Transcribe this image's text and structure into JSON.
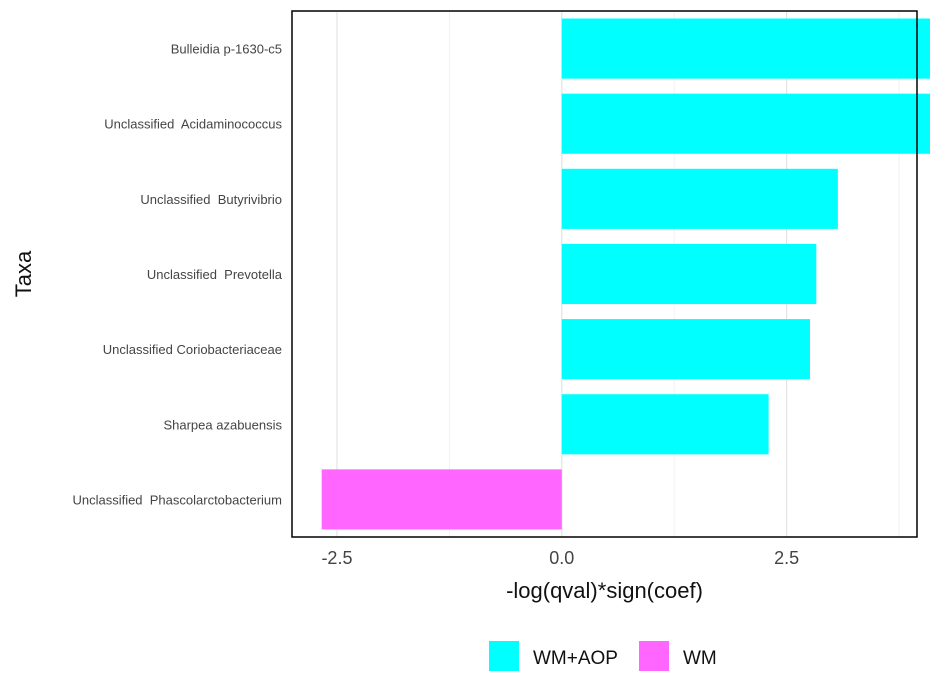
{
  "chart_data": {
    "type": "bar",
    "orientation": "horizontal",
    "xlabel": "-log(qval)*sign(coef)",
    "ylabel": "Taxa",
    "xlim": [
      -3.0,
      3.95
    ],
    "xticks": [
      -2.5,
      0.0,
      2.5
    ],
    "xtick_labels": [
      "-2.5",
      "0.0",
      "2.5"
    ],
    "grid": "vertical",
    "legend_position": "bottom",
    "categories": [
      "Bulleidia p-1630-c5",
      "Unclassified  Acidaminococcus",
      "Unclassified  Butyrivibrio",
      "Unclassified  Prevotella",
      "Unclassified Coriobacteriaceae",
      "Sharpea azabuensis",
      "Unclassified  Phascolarctobacterium"
    ],
    "values": [
      4.55,
      4.1,
      3.07,
      2.83,
      2.76,
      2.3,
      -2.67
    ],
    "groups": [
      "WM+AOP",
      "WM+AOP",
      "WM+AOP",
      "WM+AOP",
      "WM+AOP",
      "WM+AOP",
      "WM"
    ],
    "legend": [
      {
        "name": "WM+AOP",
        "color": "#00FFFF"
      },
      {
        "name": "WM",
        "color": "#FF66FF"
      }
    ]
  }
}
